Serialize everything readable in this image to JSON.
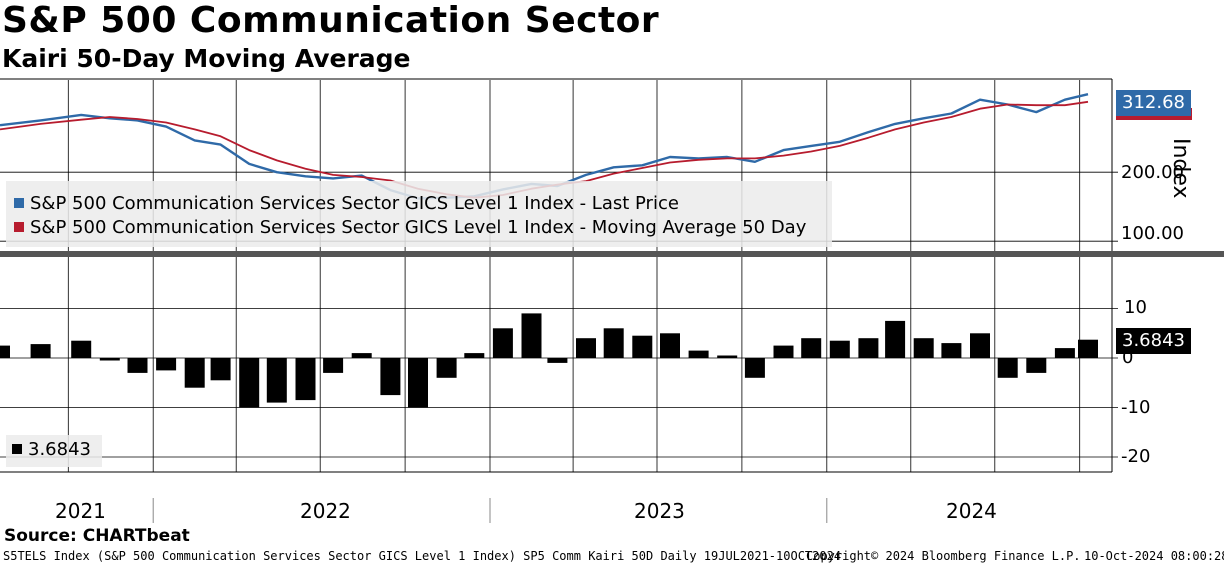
{
  "title": "S&P 500 Communication Sector",
  "subtitle": "Kairi 50-Day Moving Average",
  "source": "Source: CHARTbeat",
  "footer": {
    "left": "S5TELS Index (S&P 500 Communication Services Sector GICS Level 1 Index) SP5 Comm Kairi 50D  Daily 19JUL2021-10OCT2024",
    "center": "Copyright© 2024 Bloomberg Finance L.P.",
    "right": "10-Oct-2024 08:00:28"
  },
  "colors": {
    "price": "#2f6aa8",
    "ma": "#b71c2e",
    "kairi": "#000000"
  },
  "chart_data": [
    {
      "type": "line",
      "ylabel": "Index",
      "y_ticks": [
        "100.00",
        "200.00"
      ],
      "ylim": [
        80,
        335
      ],
      "last_value_label": "312.68",
      "legend": [
        "S&P 500 Communication Services Sector GICS Level 1 Index - Last Price",
        "S&P 500 Communication Services Sector GICS Level 1 Index - Moving Average 50 Day"
      ],
      "x": [
        "2021-07-19",
        "2021-09-01",
        "2021-10-15",
        "2021-11-15",
        "2021-12-15",
        "2022-01-15",
        "2022-02-15",
        "2022-03-15",
        "2022-04-15",
        "2022-05-15",
        "2022-06-15",
        "2022-07-15",
        "2022-08-15",
        "2022-09-15",
        "2022-10-15",
        "2022-11-15",
        "2022-12-15",
        "2023-01-15",
        "2023-02-15",
        "2023-03-15",
        "2023-04-15",
        "2023-05-15",
        "2023-06-15",
        "2023-07-15",
        "2023-08-15",
        "2023-09-15",
        "2023-10-15",
        "2023-11-15",
        "2023-12-15",
        "2024-01-15",
        "2024-02-15",
        "2024-03-15",
        "2024-04-15",
        "2024-05-15",
        "2024-06-15",
        "2024-07-15",
        "2024-08-15",
        "2024-09-15",
        "2024-10-10"
      ],
      "series": [
        {
          "name": "S&P 500 Communication Services Sector GICS Level 1 Index - Last Price",
          "values": [
            268,
            275,
            283,
            278,
            275,
            266,
            246,
            240,
            212,
            200,
            194,
            191,
            195,
            174,
            162,
            163,
            165,
            175,
            183,
            180,
            196,
            207,
            210,
            222,
            220,
            222,
            215,
            232,
            238,
            244,
            258,
            270,
            278,
            285,
            305,
            298,
            287,
            305,
            313
          ]
        },
        {
          "name": "S&P 500 Communication Services Sector GICS Level 1 Index - Moving Average 50 Day",
          "values": [
            262,
            270,
            276,
            280,
            277,
            272,
            262,
            252,
            232,
            217,
            205,
            196,
            193,
            188,
            176,
            168,
            163,
            167,
            176,
            182,
            187,
            198,
            206,
            214,
            218,
            220,
            220,
            224,
            230,
            238,
            250,
            262,
            272,
            280,
            292,
            298,
            297,
            297,
            302
          ]
        }
      ]
    },
    {
      "type": "bar",
      "y_ticks": [
        "10",
        "0",
        "-10",
        "-20"
      ],
      "ylim": [
        -23,
        19
      ],
      "last_value_label": "3.6843",
      "legend": [
        "3.6843"
      ],
      "series": [
        {
          "name": "3.6843",
          "x": [
            "2021-07-19",
            "2021-09-01",
            "2021-10-15",
            "2021-11-15",
            "2021-12-15",
            "2022-01-15",
            "2022-02-15",
            "2022-03-15",
            "2022-04-15",
            "2022-05-15",
            "2022-06-15",
            "2022-07-15",
            "2022-08-15",
            "2022-09-15",
            "2022-10-15",
            "2022-11-15",
            "2022-12-15",
            "2023-01-15",
            "2023-02-15",
            "2023-03-15",
            "2023-04-15",
            "2023-05-15",
            "2023-06-15",
            "2023-07-15",
            "2023-08-15",
            "2023-09-15",
            "2023-10-15",
            "2023-11-15",
            "2023-12-15",
            "2024-01-15",
            "2024-02-15",
            "2024-03-15",
            "2024-04-15",
            "2024-05-15",
            "2024-06-15",
            "2024-07-15",
            "2024-08-15",
            "2024-09-15",
            "2024-10-10"
          ],
          "values": [
            2.5,
            2.8,
            3.5,
            -0.5,
            -3.0,
            -2.5,
            -6.0,
            -4.5,
            -10.0,
            -9.0,
            -8.5,
            -3.0,
            1.0,
            -7.5,
            -10.0,
            -4.0,
            1.0,
            6.0,
            9.0,
            -1.0,
            4.0,
            6.0,
            4.5,
            5.0,
            1.5,
            0.5,
            -4.0,
            2.5,
            4.0,
            3.5,
            4.0,
            7.5,
            4.0,
            3.0,
            5.0,
            -4.0,
            -3.0,
            2.0,
            3.7
          ]
        }
      ]
    }
  ],
  "x_axis": {
    "years": [
      "2021",
      "2022",
      "2023",
      "2024"
    ]
  }
}
